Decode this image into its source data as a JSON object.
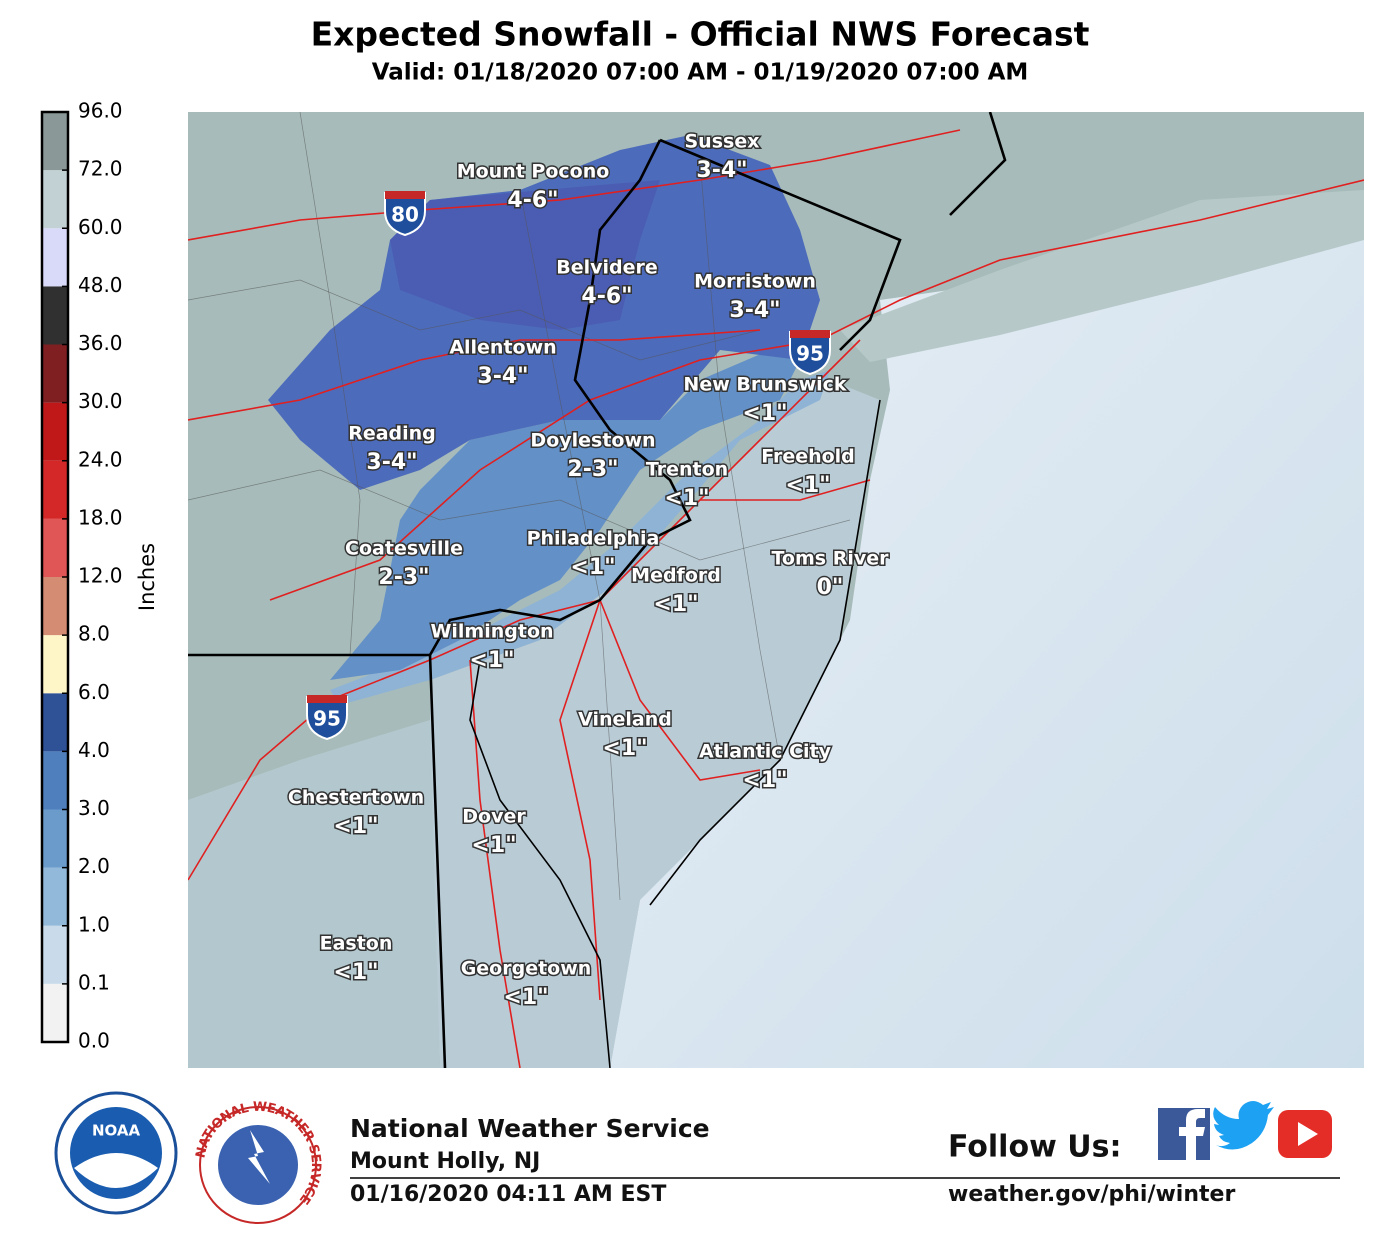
{
  "header": {
    "title": "Expected Snowfall - Official NWS Forecast",
    "subtitle": "Valid: 01/18/2020 07:00 AM - 01/19/2020 07:00 AM"
  },
  "colorbar": {
    "title": "Inches",
    "labels": [
      "0.0",
      "0.1",
      "1.0",
      "2.0",
      "3.0",
      "4.0",
      "6.0",
      "8.0",
      "12.0",
      "18.0",
      "24.0",
      "30.0",
      "36.0",
      "48.0",
      "60.0",
      "72.0",
      "96.0"
    ],
    "colors": [
      "#f2f2f2",
      "#c9dbea",
      "#93b9da",
      "#6a9bcb",
      "#4f7fbc",
      "#2f5196",
      "#fff6c8",
      "#d48c72",
      "#e05555",
      "#d42828",
      "#c01818",
      "#7f1f22",
      "#303030",
      "#d9d9fa",
      "#c2d2d4",
      "#8a9898"
    ]
  },
  "map": {
    "cities": [
      {
        "name": "Sussex",
        "amount": "3-4\""
      },
      {
        "name": "Mount Pocono",
        "amount": "4-6\""
      },
      {
        "name": "Belvidere",
        "amount": "4-6\""
      },
      {
        "name": "Morristown",
        "amount": "3-4\""
      },
      {
        "name": "Allentown",
        "amount": "3-4\""
      },
      {
        "name": "New Brunswick",
        "amount": "<1\""
      },
      {
        "name": "Reading",
        "amount": "3-4\""
      },
      {
        "name": "Doylestown",
        "amount": "2-3\""
      },
      {
        "name": "Trenton",
        "amount": "<1\""
      },
      {
        "name": "Freehold",
        "amount": "<1\""
      },
      {
        "name": "Philadelphia",
        "amount": "<1\""
      },
      {
        "name": "Coatesville",
        "amount": "2-3\""
      },
      {
        "name": "Medford",
        "amount": "<1\""
      },
      {
        "name": "Toms River",
        "amount": "0\""
      },
      {
        "name": "Wilmington",
        "amount": "<1\""
      },
      {
        "name": "Vineland",
        "amount": "<1\""
      },
      {
        "name": "Atlantic City",
        "amount": "<1\""
      },
      {
        "name": "Chestertown",
        "amount": "<1\""
      },
      {
        "name": "Dover",
        "amount": "<1\""
      },
      {
        "name": "Easton",
        "amount": "<1\""
      },
      {
        "name": "Georgetown",
        "amount": "<1\""
      }
    ],
    "interstates": [
      "80",
      "95",
      "95"
    ]
  },
  "footer": {
    "noaa_logo": "NOAA",
    "nws_logo": "NATIONAL WEATHER SERVICE",
    "office": "National Weather Service",
    "location": "Mount Holly, NJ",
    "issued": "01/16/2020 04:11 AM EST",
    "follow": "Follow Us:",
    "url": "weather.gov/phi/winter"
  }
}
